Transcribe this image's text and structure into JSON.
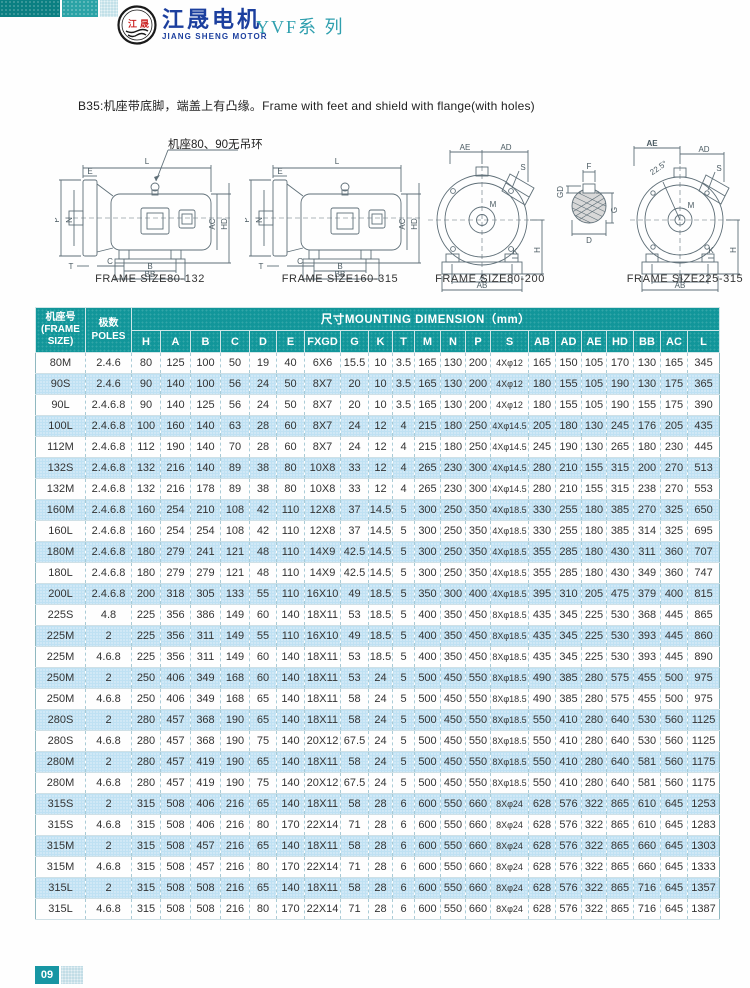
{
  "header": {
    "logo_text_left": "江",
    "logo_text_right": "晟",
    "brand_cn": "江晟电机",
    "brand_en": "JIANG SHENG MOTOR",
    "series": "YVF系 列"
  },
  "intro": "B35:机座带底脚，端盖上有凸缘。Frame with feet and shield with flange(with holes)",
  "diagrams": {
    "note": "机座80、90无吊环",
    "captions": {
      "d1": "FRAME SIZE80-132",
      "d2": "FRAME SIZE160-315",
      "d3": "FRAME SIZE80-200",
      "d4": "FRAME SIZE225-315"
    },
    "side_labels": {
      "L": "L",
      "P": "P",
      "N": "N",
      "E": "E",
      "T": "T",
      "C": "C",
      "B": "B",
      "BB": "BB",
      "AC": "AC",
      "HD": "HD"
    },
    "front_labels": {
      "AE": "AE",
      "AD": "AD",
      "S": "S",
      "M": "M",
      "H": "H",
      "K": "K",
      "A": "A",
      "AB": "AB"
    },
    "angle": "22.5°",
    "shaft_labels": {
      "F": "F",
      "GD": "GD",
      "G": "G",
      "D": "D"
    }
  },
  "table": {
    "frame_header_cn": "机座号",
    "frame_header_en": "(FRAME SIZE)",
    "poles_header_cn": "极数",
    "poles_header_en": "POLES",
    "span_header": "尺寸MOUNTING DIMENSION（mm）",
    "columns": [
      "H",
      "A",
      "B",
      "C",
      "D",
      "E",
      "FXGD",
      "G",
      "K",
      "T",
      "M",
      "N",
      "P",
      "S",
      "AB",
      "AD",
      "AE",
      "HD",
      "BB",
      "AC",
      "L"
    ],
    "rows": [
      {
        "frame": "80M",
        "poles": "2.4.6",
        "values": [
          "80",
          "125",
          "100",
          "50",
          "19",
          "40",
          "6X6",
          "15.5",
          "10",
          "3.5",
          "165",
          "130",
          "200",
          "4Xφ12",
          "165",
          "150",
          "105",
          "170",
          "130",
          "165",
          "345"
        ]
      },
      {
        "frame": "90S",
        "poles": "2.4.6",
        "values": [
          "90",
          "140",
          "100",
          "56",
          "24",
          "50",
          "8X7",
          "20",
          "10",
          "3.5",
          "165",
          "130",
          "200",
          "4Xφ12",
          "180",
          "155",
          "105",
          "190",
          "130",
          "175",
          "365"
        ]
      },
      {
        "frame": "90L",
        "poles": "2.4.6.8",
        "values": [
          "90",
          "140",
          "125",
          "56",
          "24",
          "50",
          "8X7",
          "20",
          "10",
          "3.5",
          "165",
          "130",
          "200",
          "4Xφ12",
          "180",
          "155",
          "105",
          "190",
          "155",
          "175",
          "390"
        ]
      },
      {
        "frame": "100L",
        "poles": "2.4.6.8",
        "values": [
          "100",
          "160",
          "140",
          "63",
          "28",
          "60",
          "8X7",
          "24",
          "12",
          "4",
          "215",
          "180",
          "250",
          "4Xφ14.5",
          "205",
          "180",
          "130",
          "245",
          "176",
          "205",
          "435"
        ]
      },
      {
        "frame": "112M",
        "poles": "2.4.6.8",
        "values": [
          "112",
          "190",
          "140",
          "70",
          "28",
          "60",
          "8X7",
          "24",
          "12",
          "4",
          "215",
          "180",
          "250",
          "4Xφ14.5",
          "245",
          "190",
          "130",
          "265",
          "180",
          "230",
          "445"
        ]
      },
      {
        "frame": "132S",
        "poles": "2.4.6.8",
        "values": [
          "132",
          "216",
          "140",
          "89",
          "38",
          "80",
          "10X8",
          "33",
          "12",
          "4",
          "265",
          "230",
          "300",
          "4Xφ14.5",
          "280",
          "210",
          "155",
          "315",
          "200",
          "270",
          "513"
        ]
      },
      {
        "frame": "132M",
        "poles": "2.4.6.8",
        "values": [
          "132",
          "216",
          "178",
          "89",
          "38",
          "80",
          "10X8",
          "33",
          "12",
          "4",
          "265",
          "230",
          "300",
          "4Xφ14.5",
          "280",
          "210",
          "155",
          "315",
          "238",
          "270",
          "553"
        ]
      },
      {
        "frame": "160M",
        "poles": "2.4.6.8",
        "values": [
          "160",
          "254",
          "210",
          "108",
          "42",
          "110",
          "12X8",
          "37",
          "14.5",
          "5",
          "300",
          "250",
          "350",
          "4Xφ18.5",
          "330",
          "255",
          "180",
          "385",
          "270",
          "325",
          "650"
        ]
      },
      {
        "frame": "160L",
        "poles": "2.4.6.8",
        "values": [
          "160",
          "254",
          "254",
          "108",
          "42",
          "110",
          "12X8",
          "37",
          "14.5",
          "5",
          "300",
          "250",
          "350",
          "4Xφ18.5",
          "330",
          "255",
          "180",
          "385",
          "314",
          "325",
          "695"
        ]
      },
      {
        "frame": "180M",
        "poles": "2.4.6.8",
        "values": [
          "180",
          "279",
          "241",
          "121",
          "48",
          "110",
          "14X9",
          "42.5",
          "14.5",
          "5",
          "300",
          "250",
          "350",
          "4Xφ18.5",
          "355",
          "285",
          "180",
          "430",
          "311",
          "360",
          "707"
        ]
      },
      {
        "frame": "180L",
        "poles": "2.4.6.8",
        "values": [
          "180",
          "279",
          "279",
          "121",
          "48",
          "110",
          "14X9",
          "42.5",
          "14.5",
          "5",
          "300",
          "250",
          "350",
          "4Xφ18.5",
          "355",
          "285",
          "180",
          "430",
          "349",
          "360",
          "747"
        ]
      },
      {
        "frame": "200L",
        "poles": "2.4.6.8",
        "values": [
          "200",
          "318",
          "305",
          "133",
          "55",
          "110",
          "16X10",
          "49",
          "18.5",
          "5",
          "350",
          "300",
          "400",
          "4Xφ18.5",
          "395",
          "310",
          "205",
          "475",
          "379",
          "400",
          "815"
        ]
      },
      {
        "frame": "225S",
        "poles": "4.8",
        "values": [
          "225",
          "356",
          "386",
          "149",
          "60",
          "140",
          "18X11",
          "53",
          "18.5",
          "5",
          "400",
          "350",
          "450",
          "8Xφ18.5",
          "435",
          "345",
          "225",
          "530",
          "368",
          "445",
          "865"
        ]
      },
      {
        "frame": "225M",
        "poles": "2",
        "values": [
          "225",
          "356",
          "311",
          "149",
          "55",
          "110",
          "16X10",
          "49",
          "18.5",
          "5",
          "400",
          "350",
          "450",
          "8Xφ18.5",
          "435",
          "345",
          "225",
          "530",
          "393",
          "445",
          "860"
        ]
      },
      {
        "frame": "225M",
        "poles": "4.6.8",
        "values": [
          "225",
          "356",
          "311",
          "149",
          "60",
          "140",
          "18X11",
          "53",
          "18.5",
          "5",
          "400",
          "350",
          "450",
          "8Xφ18.5",
          "435",
          "345",
          "225",
          "530",
          "393",
          "445",
          "890"
        ]
      },
      {
        "frame": "250M",
        "poles": "2",
        "values": [
          "250",
          "406",
          "349",
          "168",
          "60",
          "140",
          "18X11",
          "53",
          "24",
          "5",
          "500",
          "450",
          "550",
          "8Xφ18.5",
          "490",
          "385",
          "280",
          "575",
          "455",
          "500",
          "975"
        ]
      },
      {
        "frame": "250M",
        "poles": "4.6.8",
        "values": [
          "250",
          "406",
          "349",
          "168",
          "65",
          "140",
          "18X11",
          "58",
          "24",
          "5",
          "500",
          "450",
          "550",
          "8Xφ18.5",
          "490",
          "385",
          "280",
          "575",
          "455",
          "500",
          "975"
        ]
      },
      {
        "frame": "280S",
        "poles": "2",
        "values": [
          "280",
          "457",
          "368",
          "190",
          "65",
          "140",
          "18X11",
          "58",
          "24",
          "5",
          "500",
          "450",
          "550",
          "8Xφ18.5",
          "550",
          "410",
          "280",
          "640",
          "530",
          "560",
          "1125"
        ]
      },
      {
        "frame": "280S",
        "poles": "4.6.8",
        "values": [
          "280",
          "457",
          "368",
          "190",
          "75",
          "140",
          "20X12",
          "67.5",
          "24",
          "5",
          "500",
          "450",
          "550",
          "8Xφ18.5",
          "550",
          "410",
          "280",
          "640",
          "530",
          "560",
          "1125"
        ]
      },
      {
        "frame": "280M",
        "poles": "2",
        "values": [
          "280",
          "457",
          "419",
          "190",
          "65",
          "140",
          "18X11",
          "58",
          "24",
          "5",
          "500",
          "450",
          "550",
          "8Xφ18.5",
          "550",
          "410",
          "280",
          "640",
          "581",
          "560",
          "1175"
        ]
      },
      {
        "frame": "280M",
        "poles": "4.6.8",
        "values": [
          "280",
          "457",
          "419",
          "190",
          "75",
          "140",
          "20X12",
          "67.5",
          "24",
          "5",
          "500",
          "450",
          "550",
          "8Xφ18.5",
          "550",
          "410",
          "280",
          "640",
          "581",
          "560",
          "1175"
        ]
      },
      {
        "frame": "315S",
        "poles": "2",
        "values": [
          "315",
          "508",
          "406",
          "216",
          "65",
          "140",
          "18X11",
          "58",
          "28",
          "6",
          "600",
          "550",
          "660",
          "8Xφ24",
          "628",
          "576",
          "322",
          "865",
          "610",
          "645",
          "1253"
        ]
      },
      {
        "frame": "315S",
        "poles": "4.6.8",
        "values": [
          "315",
          "508",
          "406",
          "216",
          "80",
          "170",
          "22X14",
          "71",
          "28",
          "6",
          "600",
          "550",
          "660",
          "8Xφ24",
          "628",
          "576",
          "322",
          "865",
          "610",
          "645",
          "1283"
        ]
      },
      {
        "frame": "315M",
        "poles": "2",
        "values": [
          "315",
          "508",
          "457",
          "216",
          "65",
          "140",
          "18X11",
          "58",
          "28",
          "6",
          "600",
          "550",
          "660",
          "8Xφ24",
          "628",
          "576",
          "322",
          "865",
          "660",
          "645",
          "1303"
        ]
      },
      {
        "frame": "315M",
        "poles": "4.6.8",
        "values": [
          "315",
          "508",
          "457",
          "216",
          "80",
          "170",
          "22X14",
          "71",
          "28",
          "6",
          "600",
          "550",
          "660",
          "8Xφ24",
          "628",
          "576",
          "322",
          "865",
          "660",
          "645",
          "1333"
        ]
      },
      {
        "frame": "315L",
        "poles": "2",
        "values": [
          "315",
          "508",
          "508",
          "216",
          "65",
          "140",
          "18X11",
          "58",
          "28",
          "6",
          "600",
          "550",
          "660",
          "8Xφ24",
          "628",
          "576",
          "322",
          "865",
          "716",
          "645",
          "1357"
        ]
      },
      {
        "frame": "315L",
        "poles": "4.6.8",
        "values": [
          "315",
          "508",
          "508",
          "216",
          "80",
          "170",
          "22X14",
          "71",
          "28",
          "6",
          "600",
          "550",
          "660",
          "8Xφ24",
          "628",
          "576",
          "322",
          "865",
          "716",
          "645",
          "1387"
        ]
      }
    ]
  },
  "footer": {
    "page": "09"
  }
}
